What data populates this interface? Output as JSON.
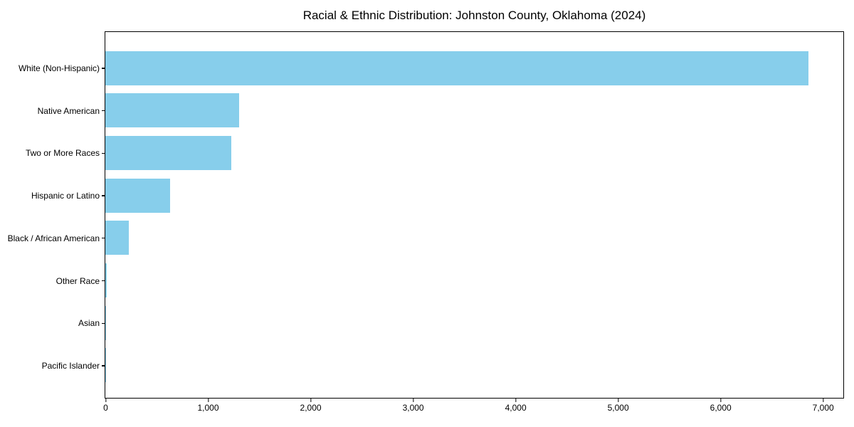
{
  "chart_data": {
    "type": "bar",
    "orientation": "horizontal",
    "title": "Racial & Ethnic Distribution: Johnston County, Oklahoma (2024)",
    "categories": [
      "White (Non-Hispanic)",
      "Native American",
      "Two or More Races",
      "Hispanic or Latino",
      "Black / African American",
      "Other Race",
      "Asian",
      "Pacific Islander"
    ],
    "values": [
      6860,
      1305,
      1230,
      630,
      230,
      12,
      4,
      1
    ],
    "xlabel": "",
    "ylabel": "",
    "xlim": [
      0,
      7200
    ],
    "x_ticks": [
      0,
      1000,
      2000,
      3000,
      4000,
      5000,
      6000,
      7000
    ],
    "x_tick_labels": [
      "0",
      "1,000",
      "2,000",
      "3,000",
      "4,000",
      "5,000",
      "6,000",
      "7,000"
    ],
    "bar_color": "#87CEEB",
    "frame_color": "#000000",
    "grid": false,
    "legend": null
  }
}
